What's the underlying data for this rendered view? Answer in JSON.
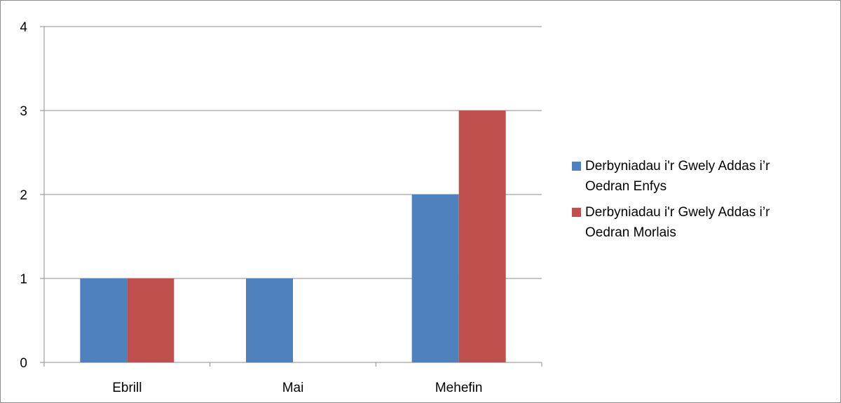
{
  "chart_data": {
    "type": "bar",
    "title": "",
    "xlabel": "",
    "ylabel": "",
    "categories": [
      "Ebrill",
      "Mai",
      "Mehefin"
    ],
    "series": [
      {
        "name": "Derbyniadau i'r Gwely Addas i’r Oedran Enfys",
        "values": [
          1,
          1,
          2
        ],
        "color": "#4f81bd"
      },
      {
        "name": "Derbyniadau i'r Gwely Addas i’r Oedran Morlais",
        "values": [
          1,
          0,
          3
        ],
        "color": "#c0504d"
      }
    ],
    "ylim": [
      0,
      4
    ],
    "yticks": [
      0,
      1,
      2,
      3,
      4
    ],
    "grid": true,
    "legend_position": "right",
    "gridline_color": "#8c8c8c",
    "axis_color": "#8c8c8c"
  }
}
